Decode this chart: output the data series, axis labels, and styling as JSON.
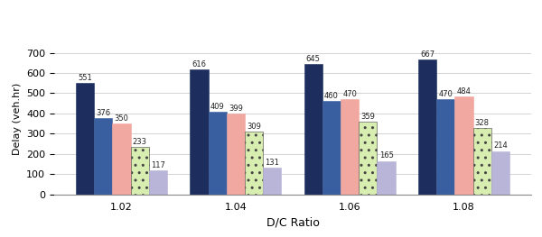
{
  "categories": [
    "1.02",
    "1.04",
    "1.06",
    "1.08"
  ],
  "series": {
    "Base": [
      551,
      616,
      645,
      667
    ],
    "Speed Parameter (45 mph)": [
      376,
      409,
      460,
      470
    ],
    "Speed Parameter (55 mph)": [
      350,
      399,
      470,
      484
    ],
    "Volume Parameter (v=0.8*c)": [
      233,
      309,
      359,
      328
    ],
    "Volume Parameter (v=0.7*c)": [
      117,
      131,
      165,
      214
    ]
  },
  "colors": {
    "Base": "#1c2d5e",
    "Speed Parameter (45 mph)": "#3a5fa0",
    "Speed Parameter (55 mph)": "#f0a8a0",
    "Volume Parameter (v=0.8*c)": "#d8edb0",
    "Volume Parameter (v=0.7*c)": "#b8b5d8"
  },
  "hatch": {
    "Base": "",
    "Speed Parameter (45 mph)": "",
    "Speed Parameter (55 mph)": "",
    "Volume Parameter (v=0.8*c)": "..",
    "Volume Parameter (v=0.7*c)": ""
  },
  "edgecolors": {
    "Base": "#1c2d5e",
    "Speed Parameter (45 mph)": "#3a5fa0",
    "Speed Parameter (55 mph)": "#f0a8a0",
    "Volume Parameter (v=0.8*c)": "#555555",
    "Volume Parameter (v=0.7*c)": "#b8b5d8"
  },
  "xlabel": "D/C Ratio",
  "ylabel": "Delay (veh.hr)",
  "ylim": [
    0,
    750
  ],
  "yticks": [
    0,
    100,
    200,
    300,
    400,
    500,
    600,
    700
  ],
  "bar_width": 0.16,
  "label_fontsize": 6.0,
  "axis_fontsize": 8,
  "legend_fontsize": 6.5
}
